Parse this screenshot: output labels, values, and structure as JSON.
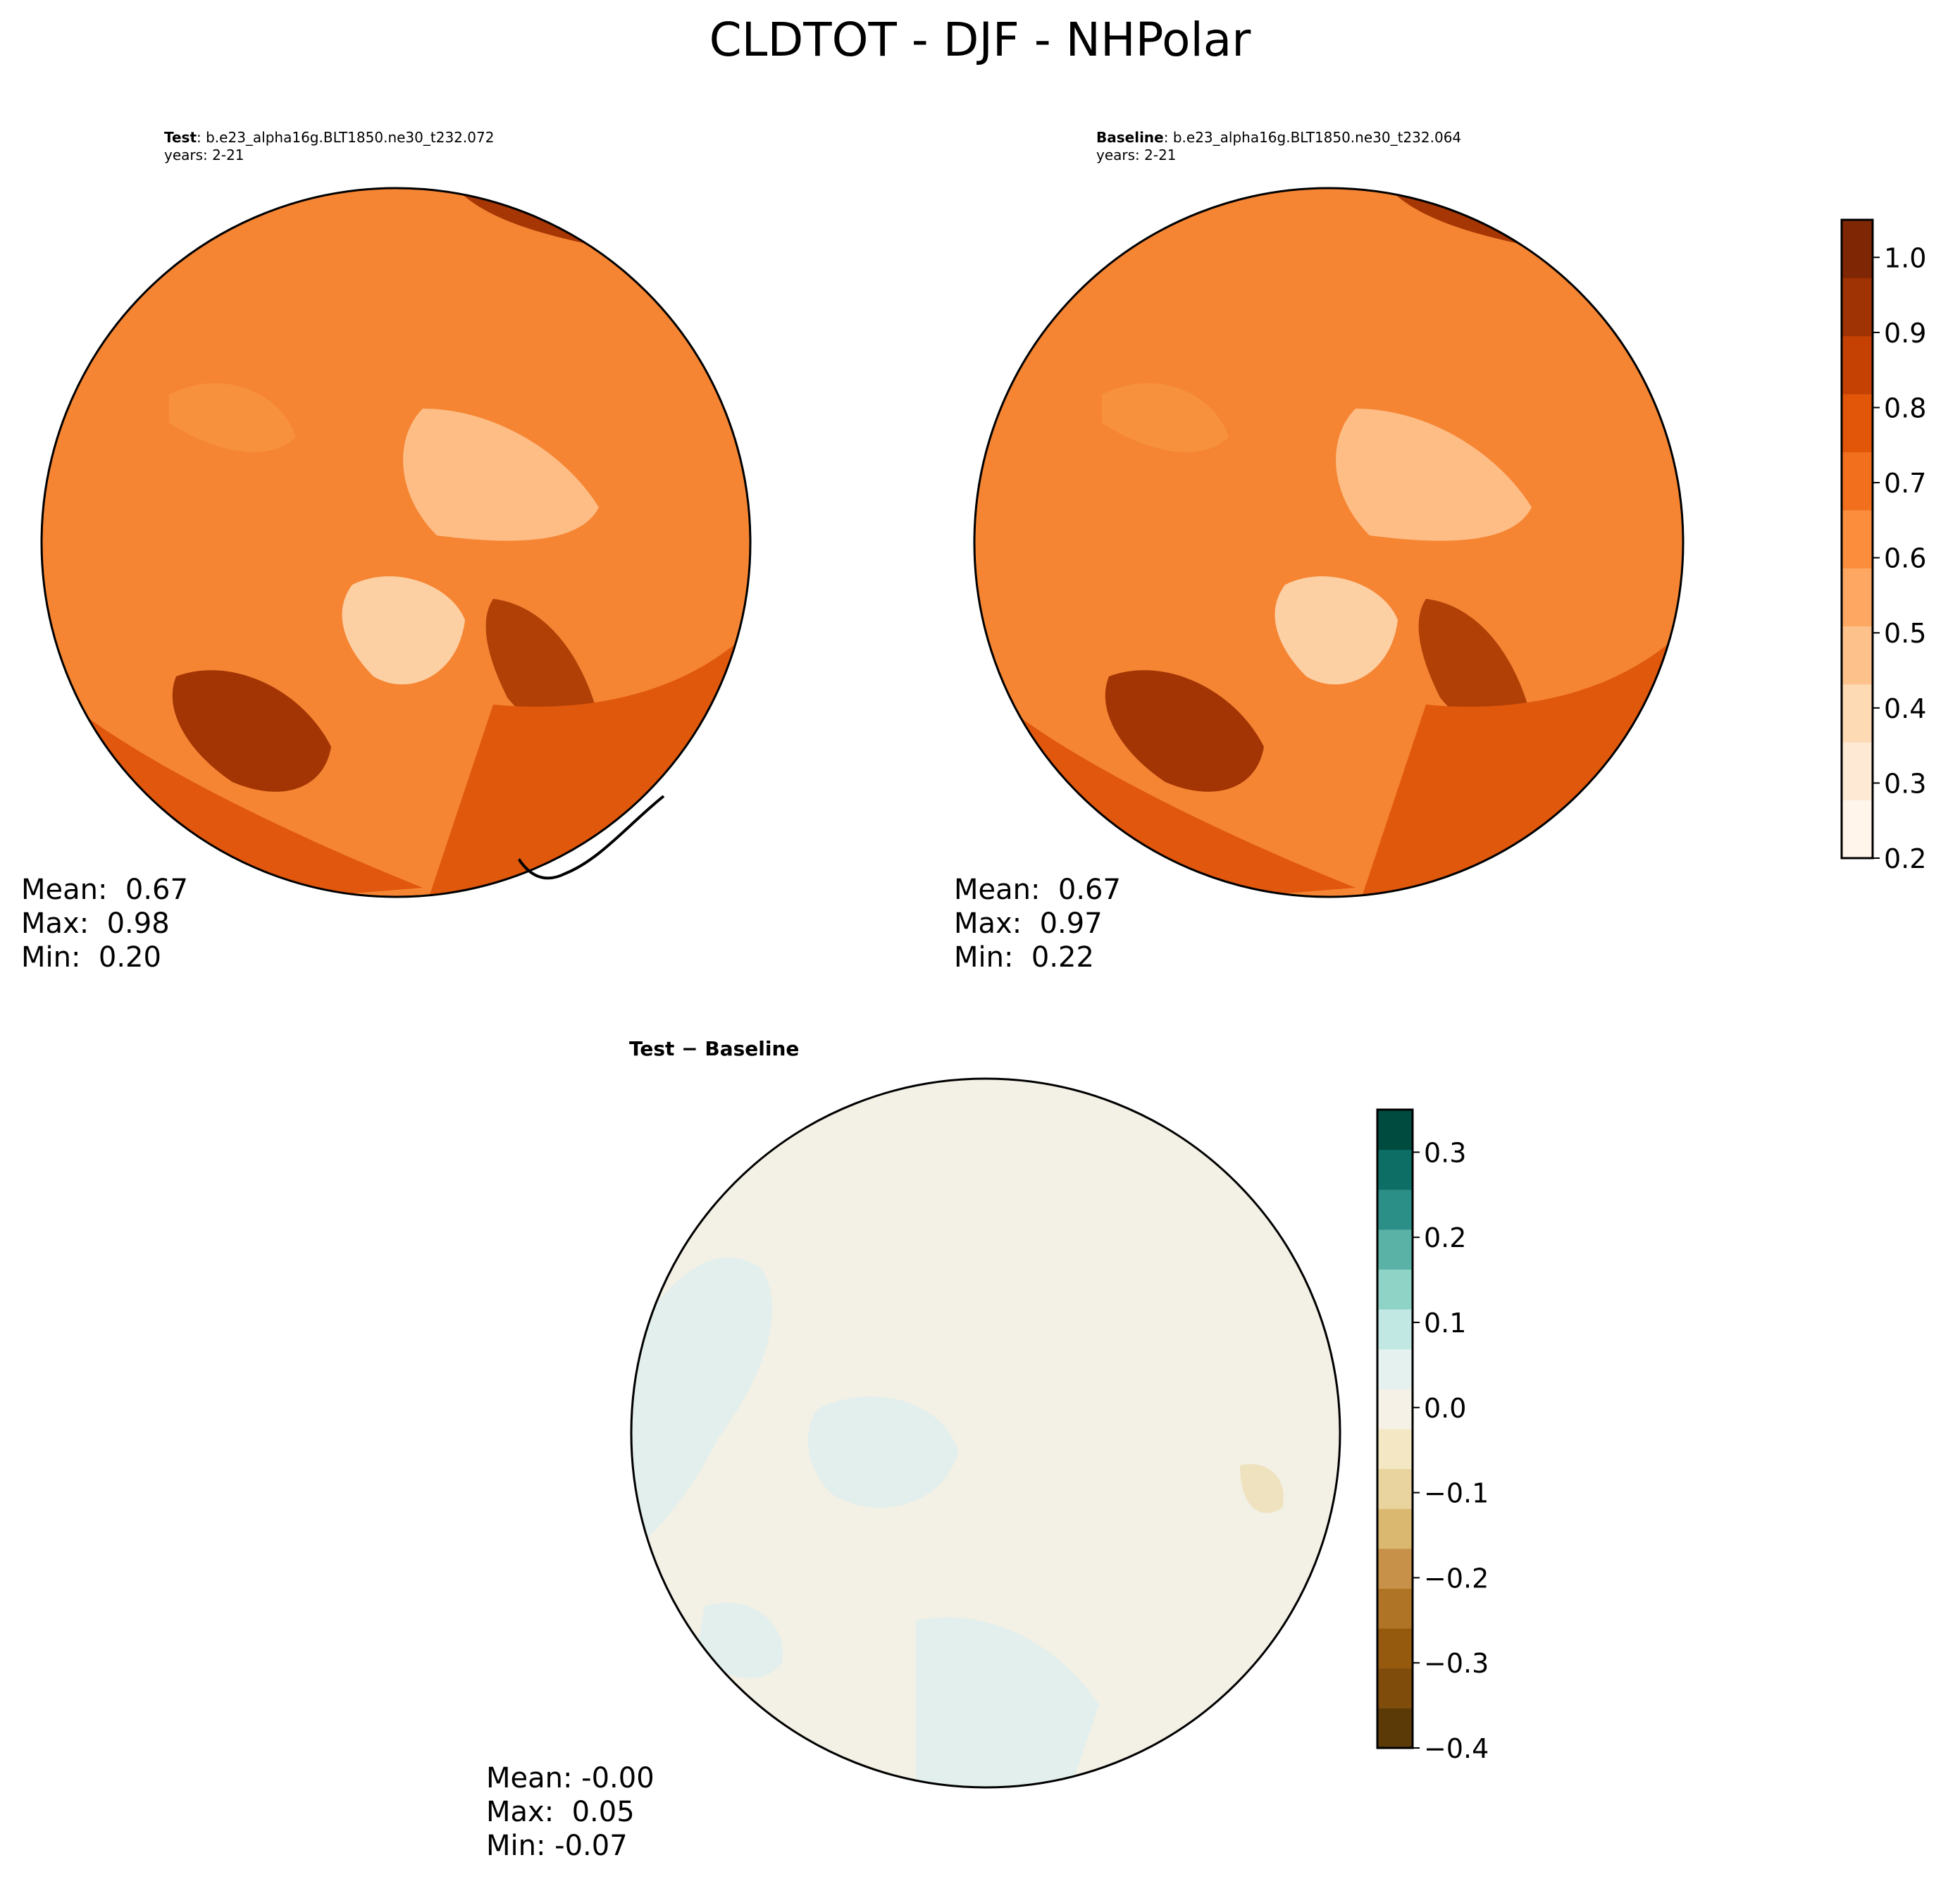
{
  "title": "CLDTOT - DJF - NHPolar",
  "panels": [
    {
      "id": "test",
      "label": "Test",
      "case": ": b.e23_alpha16g.BLT1850.ne30_t232.072",
      "years": "years: 2-21",
      "stats": {
        "mean": "Mean:  0.67",
        "max": "Max:  0.98",
        "min": "Min:  0.20"
      }
    },
    {
      "id": "baseline",
      "label": "Baseline",
      "case": ": b.e23_alpha16g.BLT1850.ne30_t232.064",
      "years": "years: 2-21",
      "stats": {
        "mean": "Mean:  0.67",
        "max": "Max:  0.97",
        "min": "Min:  0.22"
      }
    },
    {
      "id": "diff",
      "label": "Test − Baseline",
      "stats": {
        "mean": "Mean: -0.00",
        "max": "Max:  0.05",
        "min": "Min: -0.07"
      }
    }
  ],
  "colorbars": {
    "field": {
      "colormap": "Oranges",
      "range": [
        0.2,
        1.05
      ],
      "ticks": [
        "0.2",
        "0.3",
        "0.4",
        "0.5",
        "0.6",
        "0.7",
        "0.8",
        "0.9",
        "1.0"
      ],
      "tick_values": [
        0.2,
        0.3,
        0.4,
        0.5,
        0.6,
        0.7,
        0.8,
        0.9,
        1.0
      ],
      "colors": [
        "#fff5eb",
        "#fee9d4",
        "#fdd9b4",
        "#fdc28c",
        "#fda762",
        "#fb8d3d",
        "#f2701d",
        "#e25609",
        "#c44103",
        "#9f3303",
        "#7f2704"
      ]
    },
    "diff": {
      "colormap": "BrBG",
      "range": [
        -0.4,
        0.35
      ],
      "ticks": [
        "−0.4",
        "−0.3",
        "−0.2",
        "−0.1",
        "0.0",
        "0.1",
        "0.2",
        "0.3"
      ],
      "tick_values": [
        -0.4,
        -0.3,
        -0.2,
        -0.1,
        0.0,
        0.1,
        0.2,
        0.3
      ],
      "colors": [
        "#5c3a07",
        "#7f4c0b",
        "#965a0f",
        "#b07427",
        "#c89149",
        "#dab870",
        "#e9d49f",
        "#f3e7c4",
        "#f5f1e6",
        "#e4f1ef",
        "#c2e8e3",
        "#8fd3c6",
        "#5ab2a6",
        "#2c8f87",
        "#0d6e66",
        "#004b40"
      ]
    }
  },
  "map_fill": {
    "test": "#f58533",
    "baseline": "#f58533",
    "diff": "#f3f0e5"
  }
}
